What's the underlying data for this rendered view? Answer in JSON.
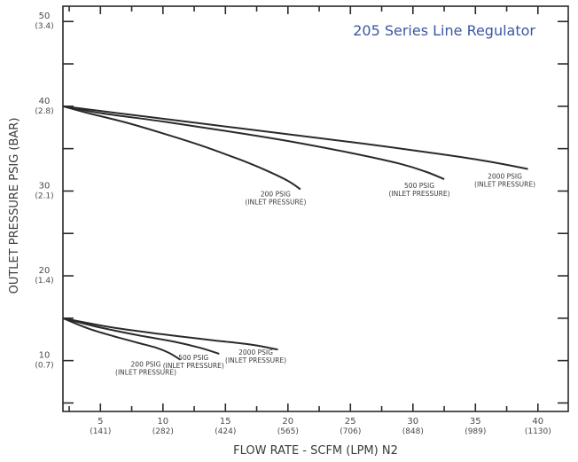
{
  "chart_data": {
    "type": "line",
    "title": "205 Series Line Regulator",
    "xlabel": "FLOW RATE - SCFM (LPM) N2",
    "ylabel": "OUTLET PRESSURE PSIG (BAR)",
    "xlim": [
      2,
      42
    ],
    "ylim": [
      4,
      52
    ],
    "x_ticks": [
      {
        "value": 5,
        "label": "5",
        "sub": "(141)"
      },
      {
        "value": 10,
        "label": "10",
        "sub": "(282)"
      },
      {
        "value": 15,
        "label": "15",
        "sub": "(424)"
      },
      {
        "value": 20,
        "label": "20",
        "sub": "(565)"
      },
      {
        "value": 25,
        "label": "25",
        "sub": "(706)"
      },
      {
        "value": 30,
        "label": "30",
        "sub": "(848)"
      },
      {
        "value": 35,
        "label": "35",
        "sub": "(989)"
      },
      {
        "value": 40,
        "label": "40",
        "sub": "(1130)"
      }
    ],
    "y_ticks": [
      {
        "value": 10,
        "label": "10",
        "sub": "(0.7)"
      },
      {
        "value": 20,
        "label": "20",
        "sub": "(1.4)"
      },
      {
        "value": 30,
        "label": "30",
        "sub": "(2.1)"
      },
      {
        "value": 40,
        "label": "40",
        "sub": "(2.8)"
      },
      {
        "value": 50,
        "label": "50",
        "sub": "(3.4)"
      }
    ],
    "y_minor_ticks": [
      15,
      25,
      35,
      45,
      5
    ],
    "x_minor_ticks": [
      2.5,
      7.5,
      12.5,
      17.5,
      22.5,
      27.5,
      32.5,
      37.5
    ],
    "series": [
      {
        "name": "200 PSIG",
        "note": "(INLET PRESSURE)",
        "x": [
          2,
          4,
          7,
          10,
          13,
          16,
          18,
          20,
          21
        ],
        "y": [
          40,
          39.2,
          38.1,
          36.8,
          35.4,
          33.8,
          32.6,
          31.2,
          30.2
        ]
      },
      {
        "name": "500 PSIG",
        "note": "(INLET PRESSURE)",
        "x": [
          2,
          5,
          10,
          15,
          20,
          25,
          29,
          31,
          32.5
        ],
        "y": [
          40,
          39.2,
          38.2,
          37.1,
          35.9,
          34.5,
          33.2,
          32.3,
          31.4
        ]
      },
      {
        "name": "2000 PSIG",
        "note": "(INLET PRESSURE)",
        "x": [
          2,
          8,
          14,
          20,
          26,
          32,
          36,
          39.2
        ],
        "y": [
          40,
          38.9,
          37.8,
          36.7,
          35.6,
          34.4,
          33.5,
          32.6
        ]
      },
      {
        "name": "200 PSIG",
        "note": "(INLET PRESSURE)",
        "x": [
          2,
          4,
          6,
          8,
          9.5,
          10.5,
          11.4
        ],
        "y": [
          15,
          13.8,
          12.9,
          12.1,
          11.5,
          10.9,
          10.1
        ]
      },
      {
        "name": "500 PSIG",
        "note": "(INLET PRESSURE)",
        "x": [
          2,
          5,
          8,
          11,
          13,
          14.5
        ],
        "y": [
          15,
          13.9,
          13,
          12.2,
          11.5,
          10.8
        ]
      },
      {
        "name": "2000 PSIG",
        "note": "(INLET PRESSURE)",
        "x": [
          2,
          6,
          10,
          14,
          17,
          19.2
        ],
        "y": [
          15,
          13.9,
          13.1,
          12.4,
          11.9,
          11.3
        ]
      }
    ],
    "grid": false,
    "legend": "none"
  }
}
